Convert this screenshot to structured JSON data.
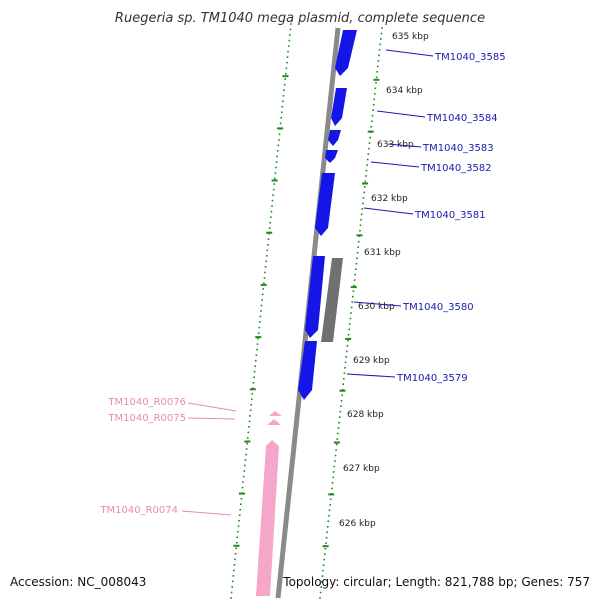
{
  "title": "Ruegeria sp. TM1040 mega plasmid, complete sequence",
  "accession": "Accession: NC_008043",
  "topology": "Topology: circular; Length: 821,788 bp; Genes: 757",
  "colors": {
    "forward_gene": "#1515e8",
    "rna": "#f4a7c8",
    "other_feature": "#707070",
    "backbone": "#8a8a8a",
    "tick": "#1a8a1a",
    "forward_label": "#1a1ab0",
    "rna_label": "#e889b4"
  },
  "kbp_marks": [
    "635 kbp",
    "634 kbp",
    "633 kbp",
    "632 kbp",
    "631 kbp",
    "630 kbp",
    "629 kbp",
    "628 kbp",
    "627 kbp",
    "626 kbp"
  ],
  "forward_genes": [
    {
      "label": "TM1040_3585"
    },
    {
      "label": "TM1040_3584"
    },
    {
      "label": "TM1040_3583"
    },
    {
      "label": "TM1040_3582"
    },
    {
      "label": "TM1040_3581"
    },
    {
      "label": "TM1040_3580"
    },
    {
      "label": "TM1040_3579"
    }
  ],
  "rna_genes": [
    {
      "label": "TM1040_R0076"
    },
    {
      "label": "TM1040_R0075"
    },
    {
      "label": "TM1040_R0074"
    }
  ]
}
